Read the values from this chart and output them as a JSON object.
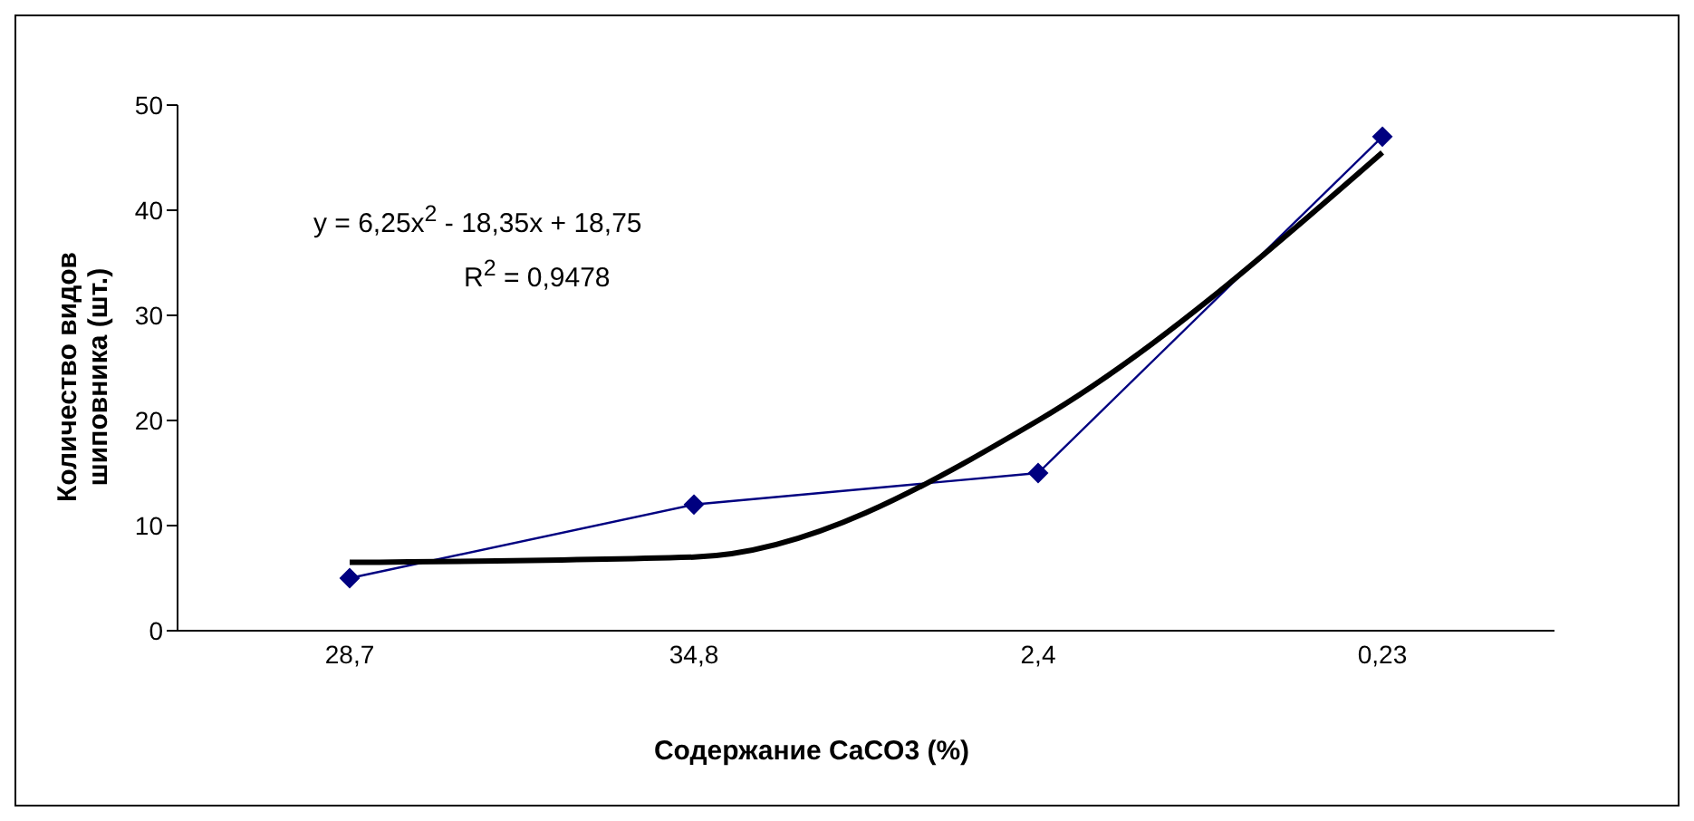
{
  "chart_data": {
    "type": "line",
    "xlabel": "Содержание CaCO3 (%)",
    "ylabel": "Количество видов шиповника (шт.)",
    "categories": [
      "28,7",
      "34,8",
      "2,4",
      "0,23"
    ],
    "series": [
      {
        "color": "#000080",
        "values": [
          5,
          12,
          15,
          47
        ],
        "marker": "diamond"
      },
      {
        "type": "line",
        "x": [
          "28,7",
          "34,8",
          "2,4",
          "0,23"
        ],
        "color": "#000000",
        "values": [
          6.5,
          7,
          20,
          45.5
        ],
        "marker": "none"
      }
    ],
    "ylim": [
      0,
      50
    ],
    "yticks": [
      0,
      10,
      20,
      30,
      40,
      50
    ],
    "annotations": [
      "y = 6,25x$^{2}$ - 18,35x + 18,75",
      "R$^{2}$ = 0,9478"
    ]
  }
}
